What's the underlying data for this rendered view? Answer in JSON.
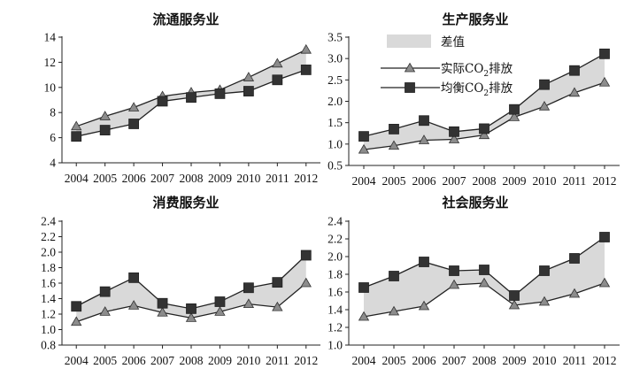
{
  "colors": {
    "gap_fill": "#d9d9d9",
    "line": "#222222",
    "actual_marker": "#8c8c8c",
    "balanced_marker": "#333333"
  },
  "legend": {
    "diff_label": "差值",
    "actual_prefix": "实际CO",
    "actual_sub": "2",
    "actual_suffix": "排放",
    "balanced_prefix": "均衡CO",
    "balanced_sub": "2",
    "balanced_suffix": "排放"
  },
  "chart_data": [
    {
      "type": "line",
      "title": "流通服务业",
      "categories": [
        "2004",
        "2005",
        "2006",
        "2007",
        "2008",
        "2009",
        "2010",
        "2011",
        "2012"
      ],
      "ylim": [
        4,
        14
      ],
      "yticks": [
        "4",
        "6",
        "8",
        "10",
        "12",
        "14"
      ],
      "series": [
        {
          "name": "实际CO2排放",
          "marker": "triangle",
          "values": [
            6.9,
            7.7,
            8.4,
            9.3,
            9.6,
            9.8,
            10.8,
            11.9,
            13.0
          ]
        },
        {
          "name": "均衡CO2排放",
          "marker": "square",
          "values": [
            6.1,
            6.6,
            7.1,
            8.9,
            9.2,
            9.5,
            9.7,
            10.6,
            11.4
          ]
        }
      ],
      "fill_between": "差值"
    },
    {
      "type": "line",
      "title": "生产服务业",
      "categories": [
        "2004",
        "2005",
        "2006",
        "2007",
        "2008",
        "2009",
        "2010",
        "2011",
        "2012"
      ],
      "ylim": [
        0.5,
        3.5
      ],
      "yticks": [
        "0.5",
        "1.0",
        "1.5",
        "2.0",
        "2.5",
        "3.0",
        "3.5"
      ],
      "series": [
        {
          "name": "实际CO2排放",
          "marker": "triangle",
          "values": [
            0.87,
            0.96,
            1.09,
            1.11,
            1.21,
            1.63,
            1.88,
            2.2,
            2.44
          ]
        },
        {
          "name": "均衡CO2排放",
          "marker": "square",
          "values": [
            1.18,
            1.35,
            1.55,
            1.29,
            1.36,
            1.81,
            2.39,
            2.72,
            3.11
          ]
        }
      ],
      "fill_between": "差值"
    },
    {
      "type": "line",
      "title": "消费服务业",
      "categories": [
        "2004",
        "2005",
        "2006",
        "2007",
        "2008",
        "2009",
        "2010",
        "2011",
        "2012"
      ],
      "ylim": [
        0.8,
        2.4
      ],
      "yticks": [
        "0.8",
        "1.0",
        "1.2",
        "1.4",
        "1.6",
        "1.8",
        "2.0",
        "2.2",
        "2.4"
      ],
      "series": [
        {
          "name": "实际CO2排放",
          "marker": "triangle",
          "values": [
            1.1,
            1.23,
            1.31,
            1.22,
            1.15,
            1.23,
            1.33,
            1.29,
            1.6
          ]
        },
        {
          "name": "均衡CO2排放",
          "marker": "square",
          "values": [
            1.3,
            1.49,
            1.67,
            1.34,
            1.27,
            1.36,
            1.54,
            1.61,
            1.96
          ]
        }
      ],
      "fill_between": "差值"
    },
    {
      "type": "line",
      "title": "社会服务业",
      "categories": [
        "2004",
        "2005",
        "2006",
        "2007",
        "2008",
        "2009",
        "2010",
        "2011",
        "2012"
      ],
      "ylim": [
        1.0,
        2.4
      ],
      "yticks": [
        "1.0",
        "1.2",
        "1.4",
        "1.6",
        "1.8",
        "2.0",
        "2.2",
        "2.4"
      ],
      "series": [
        {
          "name": "实际CO2排放",
          "marker": "triangle",
          "values": [
            1.32,
            1.38,
            1.44,
            1.68,
            1.7,
            1.45,
            1.49,
            1.58,
            1.7
          ]
        },
        {
          "name": "均衡CO2排放",
          "marker": "square",
          "values": [
            1.65,
            1.78,
            1.94,
            1.84,
            1.85,
            1.56,
            1.84,
            1.98,
            2.22
          ]
        }
      ],
      "fill_between": "差值"
    }
  ]
}
